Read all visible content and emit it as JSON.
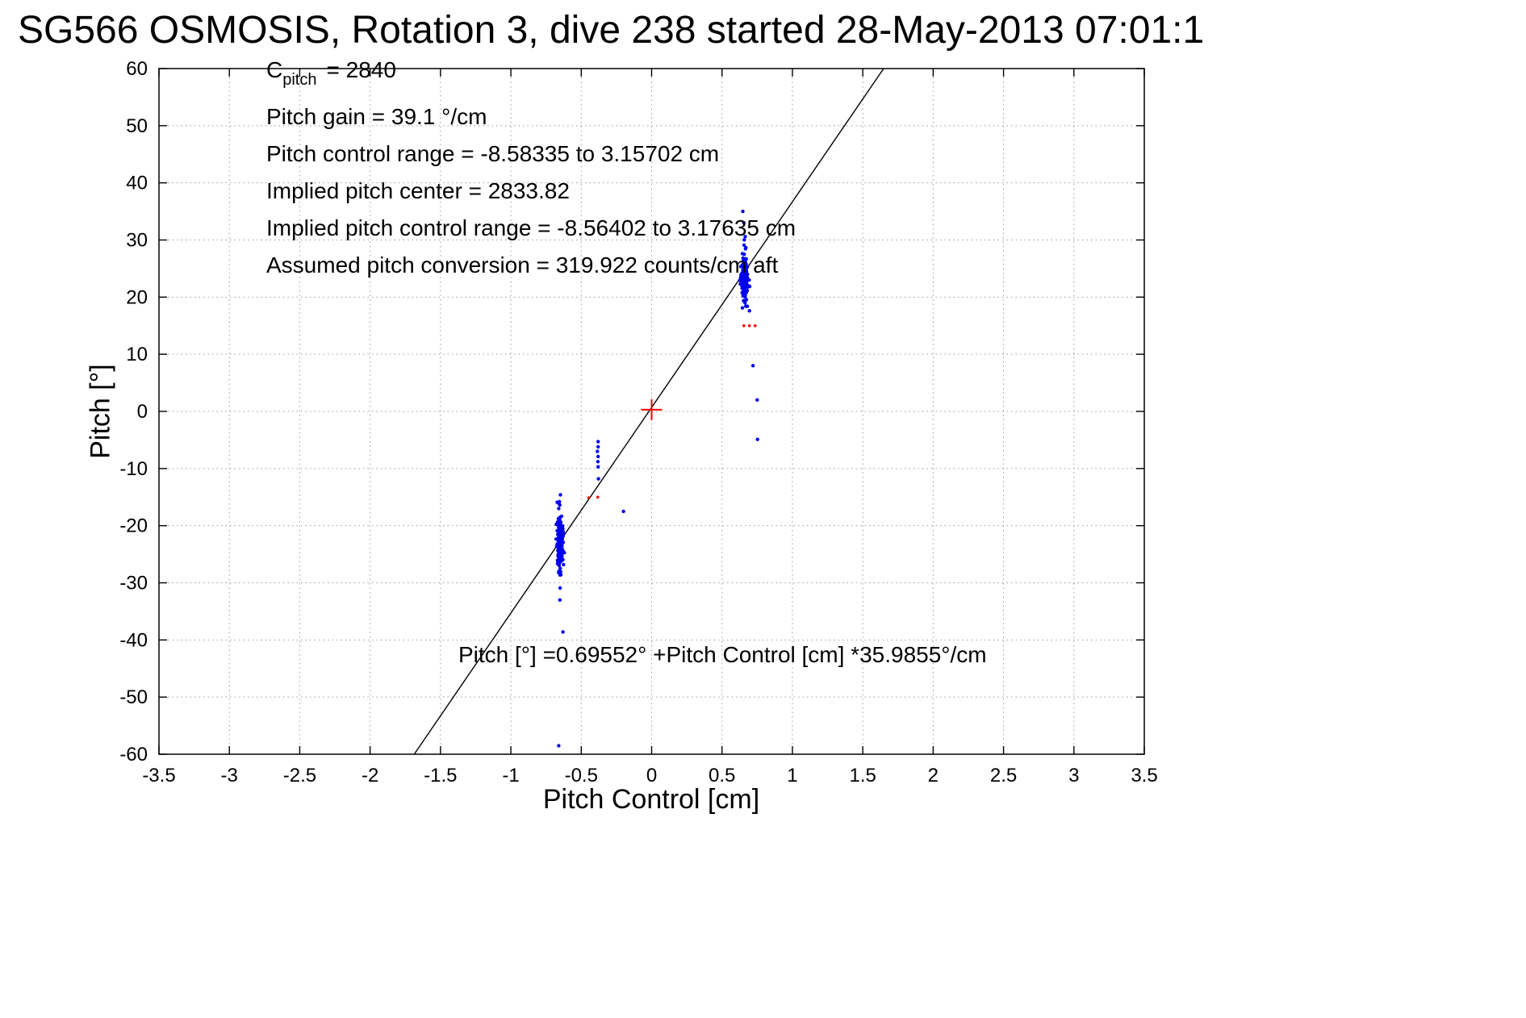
{
  "title": "SG566 OSMOSIS, Rotation 3, dive 238 started 28-May-2013 07:01:1",
  "annotations": {
    "c_pitch": {
      "base": "C",
      "sub": "pitch",
      "rest": "= 2840"
    },
    "lines": [
      "Pitch gain = 39.1 °/cm",
      "Pitch control range = -8.58335 to 3.15702 cm",
      "Implied pitch center = 2833.82",
      "Implied pitch control range = -8.56402 to 3.17635 cm",
      "Assumed pitch conversion = 319.922 counts/cm aft"
    ]
  },
  "equation": "Pitch [°] =0.69552° +Pitch Control [cm] *35.9855°/cm",
  "chart_data": {
    "type": "scatter",
    "title": "SG566 OSMOSIS, Rotation 3, dive 238 started 28-May-2013 07:01:1",
    "xlabel": "Pitch Control [cm]",
    "ylabel": "Pitch [°]",
    "xlim": [
      -3.5,
      3.5
    ],
    "ylim": [
      -60,
      60
    ],
    "xticks": [
      "-3.5",
      "-3",
      "-2.5",
      "-2",
      "-1.5",
      "-1",
      "-0.5",
      "0",
      "0.5",
      "1",
      "1.5",
      "2",
      "2.5",
      "3",
      "3.5"
    ],
    "yticks": [
      "-60",
      "-50",
      "-40",
      "-30",
      "-20",
      "-10",
      "0",
      "10",
      "20",
      "30",
      "40",
      "50",
      "60"
    ],
    "grid": true,
    "grid_color": "#9a9a9a",
    "fit_line": {
      "slope": 35.9855,
      "intercept": 0.69552,
      "color": "#000000"
    },
    "series": [
      {
        "name": "blue-points",
        "color": "#0000ee",
        "size": 2.2,
        "clusters": [
          {
            "cx": -0.65,
            "cy": -22.8,
            "sx": 0.013,
            "sy": 2.0,
            "n": 150,
            "seed": 11
          },
          {
            "cx": -0.652,
            "cy": -21.5,
            "sx": 0.006,
            "sy": 3.6,
            "n": 35,
            "seed": 22
          },
          {
            "cx": 0.655,
            "cy": 23.5,
            "sx": 0.014,
            "sy": 1.7,
            "n": 140,
            "seed": 33
          },
          {
            "cx": 0.66,
            "cy": 23.0,
            "sx": 0.007,
            "sy": 3.0,
            "n": 25,
            "seed": 44
          }
        ],
        "points": [
          [
            -0.38,
            -5.3
          ],
          [
            -0.38,
            -6.2
          ],
          [
            -0.385,
            -7.0
          ],
          [
            -0.38,
            -7.9
          ],
          [
            -0.382,
            -8.8
          ],
          [
            -0.38,
            -9.7
          ],
          [
            -0.378,
            -11.8
          ],
          [
            -0.2,
            -17.5
          ],
          [
            -0.648,
            -14.6
          ],
          [
            -0.655,
            -15.8
          ],
          [
            -0.66,
            -17.0
          ],
          [
            -0.645,
            -28.6
          ],
          [
            -0.65,
            -30.9
          ],
          [
            -0.652,
            -33.0
          ],
          [
            -0.63,
            -38.6
          ],
          [
            -0.66,
            -58.5
          ],
          [
            0.648,
            35.0
          ],
          [
            0.655,
            33.0
          ],
          [
            0.665,
            30.6
          ],
          [
            0.68,
            18.4
          ],
          [
            0.695,
            17.6
          ],
          [
            0.72,
            8.0
          ],
          [
            0.75,
            2.0
          ],
          [
            0.752,
            -4.9
          ]
        ]
      },
      {
        "name": "red-points",
        "color": "#ff0000",
        "size": 1.8,
        "clusters": [],
        "points": [
          [
            0.655,
            15.0
          ],
          [
            0.695,
            15.0
          ],
          [
            0.735,
            15.0
          ],
          [
            -0.447,
            -15.1
          ],
          [
            -0.383,
            -15.0
          ]
        ]
      }
    ],
    "reference_marker": {
      "type": "plus",
      "x": 0,
      "y": 0.3,
      "color": "#ff0000",
      "arm": 13
    }
  }
}
